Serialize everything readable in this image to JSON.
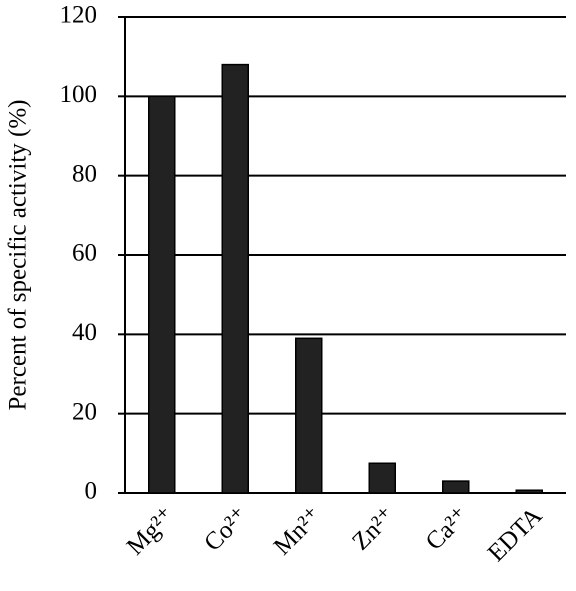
{
  "chart_data": {
    "type": "bar",
    "y_label": "Percent of specific activity (%)",
    "categories": [
      "Mg²⁺",
      "Co²⁺",
      "Mn²⁺",
      "Zn²⁺",
      "Ca²⁺",
      "EDTA"
    ],
    "values": [
      100,
      108,
      39,
      7.5,
      3,
      0.7
    ],
    "color": "#222222",
    "ylim": [
      0,
      120
    ],
    "yticks": [
      0,
      20,
      40,
      60,
      80,
      100,
      120
    ],
    "grid": true
  }
}
